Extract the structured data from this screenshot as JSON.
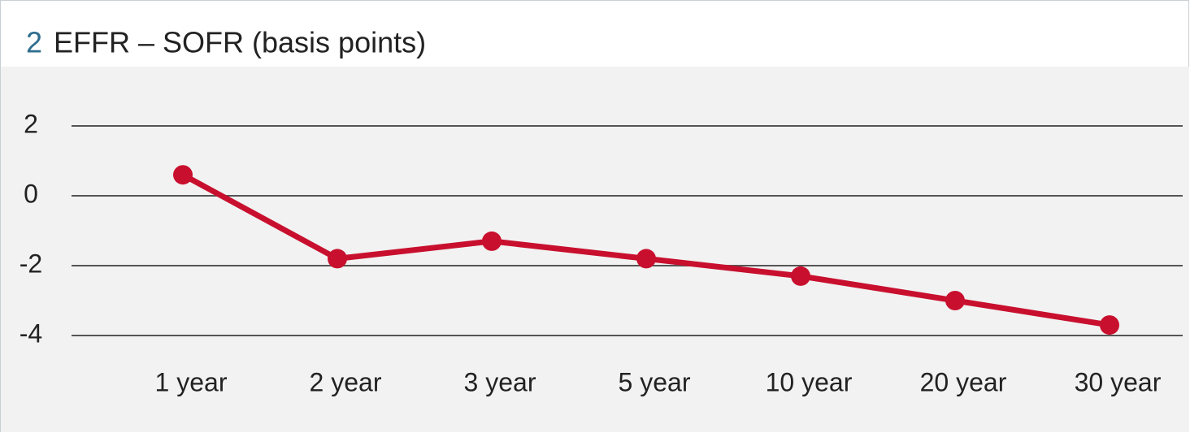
{
  "chart_data": {
    "type": "line",
    "figure_number": "2",
    "title": "EFFR – SOFR (basis points)",
    "categories": [
      "1 year",
      "2 year",
      "3 year",
      "5 year",
      "10 year",
      "20 year",
      "30 year"
    ],
    "series": [
      {
        "name": "EFFR – SOFR",
        "color": "#c8102e",
        "values": [
          0.6,
          -1.8,
          -1.3,
          -1.8,
          -2.3,
          -3.0,
          -3.7
        ]
      }
    ],
    "ylim": [
      -4,
      2
    ],
    "yticks": [
      2,
      0,
      -2,
      -4
    ],
    "grid": true
  }
}
